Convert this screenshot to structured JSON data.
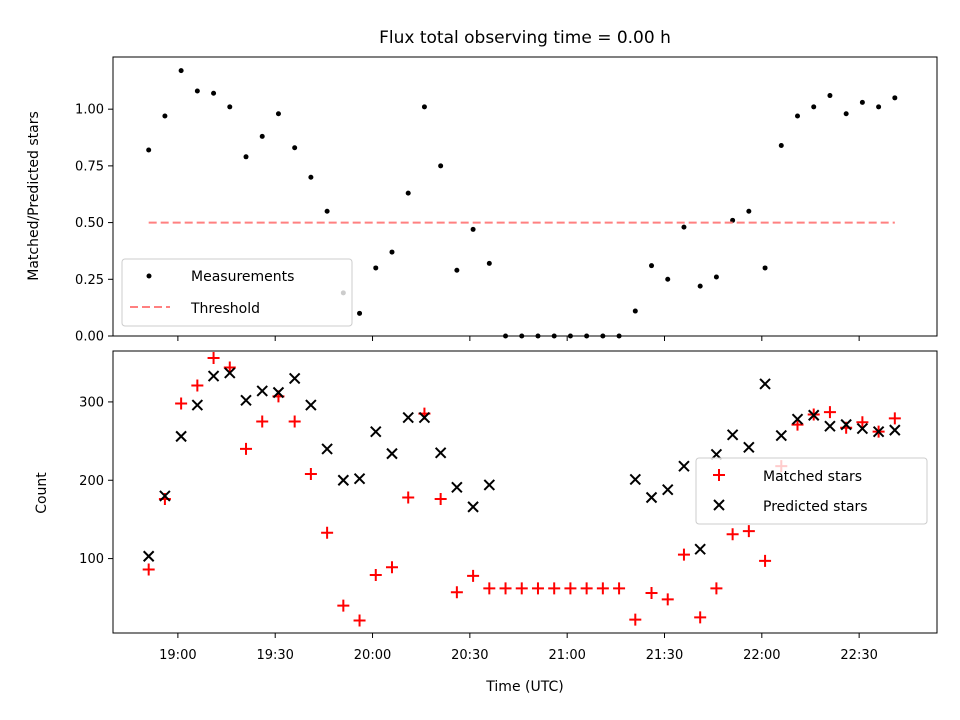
{
  "chart_data": [
    {
      "type": "scatter",
      "title": "Flux total observing time = 0.00 h",
      "xlabel": "",
      "ylabel": "Matched/Predicted stars",
      "ylim": [
        0.0,
        1.23
      ],
      "xlim": [
        "18:40",
        "22:54"
      ],
      "yticks": [
        "0.00",
        "0.25",
        "0.50",
        "0.75",
        "1.00"
      ],
      "legend_position": "lower-left",
      "series": [
        {
          "name": "Measurements",
          "marker": "dot",
          "color": "#000000",
          "points": [
            [
              "18:51",
              0.82
            ],
            [
              "18:56",
              0.97
            ],
            [
              "19:01",
              1.17
            ],
            [
              "19:06",
              1.08
            ],
            [
              "19:11",
              1.07
            ],
            [
              "19:16",
              1.01
            ],
            [
              "19:21",
              0.79
            ],
            [
              "19:26",
              0.88
            ],
            [
              "19:31",
              0.98
            ],
            [
              "19:36",
              0.83
            ],
            [
              "19:41",
              0.7
            ],
            [
              "19:46",
              0.55
            ],
            [
              "19:51",
              0.19
            ],
            [
              "19:56",
              0.1
            ],
            [
              "20:01",
              0.3
            ],
            [
              "20:06",
              0.37
            ],
            [
              "20:11",
              0.63
            ],
            [
              "20:16",
              1.01
            ],
            [
              "20:21",
              0.75
            ],
            [
              "20:26",
              0.29
            ],
            [
              "20:31",
              0.47
            ],
            [
              "20:36",
              0.32
            ],
            [
              "20:41",
              0.0
            ],
            [
              "20:46",
              0.0
            ],
            [
              "20:51",
              0.0
            ],
            [
              "20:56",
              0.0
            ],
            [
              "21:01",
              0.0
            ],
            [
              "21:06",
              0.0
            ],
            [
              "21:11",
              0.0
            ],
            [
              "21:16",
              0.0
            ],
            [
              "21:21",
              0.11
            ],
            [
              "21:26",
              0.31
            ],
            [
              "21:31",
              0.25
            ],
            [
              "21:36",
              0.48
            ],
            [
              "21:41",
              0.22
            ],
            [
              "21:46",
              0.26
            ],
            [
              "21:51",
              0.51
            ],
            [
              "21:56",
              0.55
            ],
            [
              "22:01",
              0.3
            ],
            [
              "22:06",
              0.84
            ],
            [
              "22:11",
              0.97
            ],
            [
              "22:16",
              1.01
            ],
            [
              "22:21",
              1.06
            ],
            [
              "22:26",
              0.98
            ],
            [
              "22:31",
              1.03
            ],
            [
              "22:36",
              1.01
            ],
            [
              "22:41",
              1.05
            ]
          ]
        },
        {
          "name": "Threshold",
          "marker": "dashed-line",
          "color": "#ff8080",
          "points": [
            [
              "18:51",
              0.5
            ],
            [
              "22:41",
              0.5
            ]
          ]
        }
      ]
    },
    {
      "type": "scatter",
      "title": "",
      "xlabel": "Time (UTC)",
      "ylabel": "Count",
      "ylim": [
        5,
        365
      ],
      "xlim": [
        "18:40",
        "22:54"
      ],
      "yticks": [
        "100",
        "200",
        "300"
      ],
      "xticks": [
        "19:00",
        "19:30",
        "20:00",
        "20:30",
        "21:00",
        "21:30",
        "22:00",
        "22:30"
      ],
      "legend_position": "right",
      "series": [
        {
          "name": "Matched stars",
          "marker": "plus",
          "color": "#ff0000",
          "points": [
            [
              "18:51",
              86
            ],
            [
              "18:56",
              176
            ],
            [
              "19:01",
              298
            ],
            [
              "19:06",
              321
            ],
            [
              "19:11",
              356
            ],
            [
              "19:16",
              344
            ],
            [
              "19:21",
              240
            ],
            [
              "19:26",
              275
            ],
            [
              "19:31",
              307
            ],
            [
              "19:36",
              275
            ],
            [
              "19:41",
              208
            ],
            [
              "19:46",
              133
            ],
            [
              "19:51",
              40
            ],
            [
              "19:56",
              21
            ],
            [
              "20:01",
              79
            ],
            [
              "20:06",
              89
            ],
            [
              "20:11",
              178
            ],
            [
              "20:16",
              285
            ],
            [
              "20:21",
              176
            ],
            [
              "20:26",
              57
            ],
            [
              "20:31",
              78
            ],
            [
              "20:36",
              62
            ],
            [
              "20:41",
              62
            ],
            [
              "20:46",
              62
            ],
            [
              "20:51",
              62
            ],
            [
              "20:56",
              62
            ],
            [
              "21:01",
              62
            ],
            [
              "21:06",
              62
            ],
            [
              "21:11",
              62
            ],
            [
              "21:16",
              62
            ],
            [
              "21:21",
              22
            ],
            [
              "21:26",
              56
            ],
            [
              "21:31",
              48
            ],
            [
              "21:36",
              105
            ],
            [
              "21:41",
              25
            ],
            [
              "21:46",
              62
            ],
            [
              "21:51",
              131
            ],
            [
              "21:56",
              135
            ],
            [
              "22:01",
              97
            ],
            [
              "22:06",
              218
            ],
            [
              "22:11",
              271
            ],
            [
              "22:16",
              284
            ],
            [
              "22:21",
              287
            ],
            [
              "22:26",
              267
            ],
            [
              "22:31",
              274
            ],
            [
              "22:36",
              262
            ],
            [
              "22:41",
              279
            ]
          ]
        },
        {
          "name": "Predicted stars",
          "marker": "x",
          "color": "#000000",
          "points": [
            [
              "18:51",
              103
            ],
            [
              "18:56",
              180
            ],
            [
              "19:01",
              256
            ],
            [
              "19:06",
              296
            ],
            [
              "19:11",
              333
            ],
            [
              "19:16",
              337
            ],
            [
              "19:21",
              302
            ],
            [
              "19:26",
              314
            ],
            [
              "19:31",
              312
            ],
            [
              "19:36",
              330
            ],
            [
              "19:41",
              296
            ],
            [
              "19:46",
              240
            ],
            [
              "19:51",
              200
            ],
            [
              "19:56",
              202
            ],
            [
              "20:01",
              262
            ],
            [
              "20:06",
              234
            ],
            [
              "20:11",
              280
            ],
            [
              "20:16",
              280
            ],
            [
              "20:21",
              235
            ],
            [
              "20:26",
              191
            ],
            [
              "20:31",
              166
            ],
            [
              "20:36",
              194
            ],
            [
              "21:21",
              201
            ],
            [
              "21:26",
              178
            ],
            [
              "21:31",
              188
            ],
            [
              "21:36",
              218
            ],
            [
              "21:41",
              112
            ],
            [
              "21:46",
              233
            ],
            [
              "21:51",
              258
            ],
            [
              "21:56",
              242
            ],
            [
              "22:01",
              323
            ],
            [
              "22:06",
              257
            ],
            [
              "22:11",
              278
            ],
            [
              "22:16",
              283
            ],
            [
              "22:21",
              269
            ],
            [
              "22:26",
              271
            ],
            [
              "22:31",
              266
            ],
            [
              "22:36",
              262
            ],
            [
              "22:41",
              264
            ]
          ]
        }
      ]
    }
  ]
}
